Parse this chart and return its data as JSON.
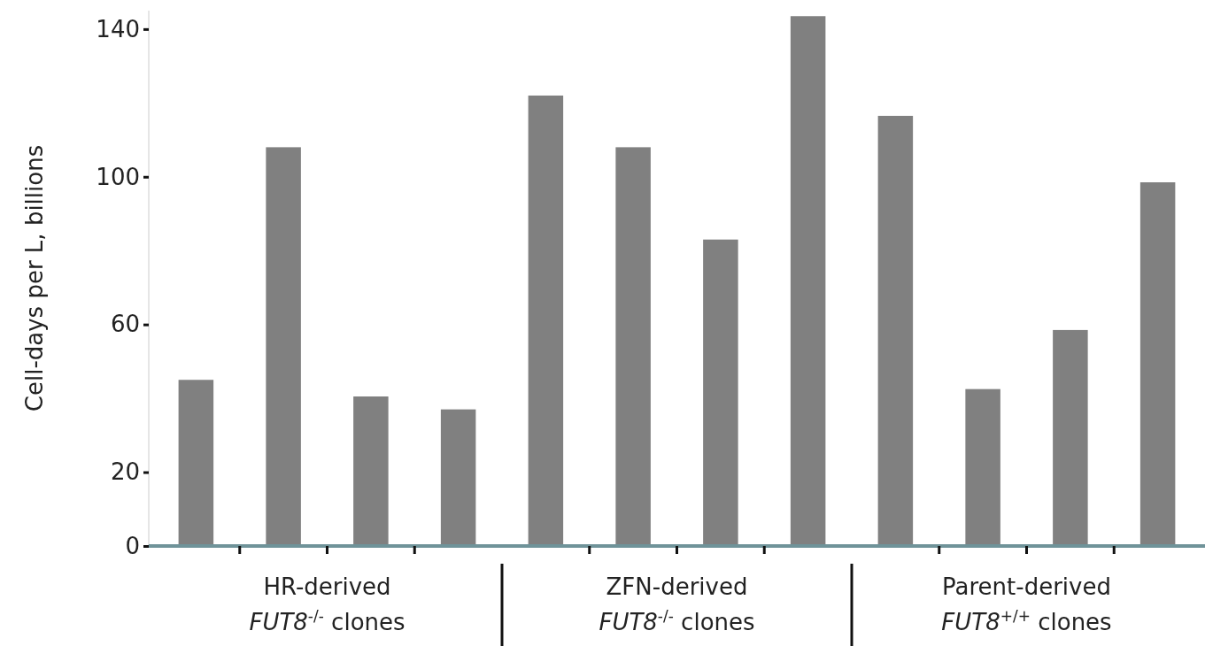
{
  "chart_data": {
    "type": "bar",
    "ylabel": "Cell-days per L, billions",
    "categories": [
      null,
      null,
      null,
      null,
      null,
      null,
      null,
      null,
      null,
      null,
      null,
      null
    ],
    "values": [
      45,
      108,
      40.5,
      37,
      122,
      108,
      83,
      143.5,
      116.5,
      42.5,
      58.5,
      98.5
    ],
    "color": "#808080",
    "ylim": [
      0,
      145
    ],
    "yticks": [
      0,
      20,
      60,
      100,
      140
    ],
    "annotations": [
      "HR-derived\nFUT8$^{-/-}$ clones",
      "ZFN-derived\nFUT8$^{-/-}$ clones",
      "Parent-derived\nFUT8$^{+/+}$ clones"
    ]
  }
}
